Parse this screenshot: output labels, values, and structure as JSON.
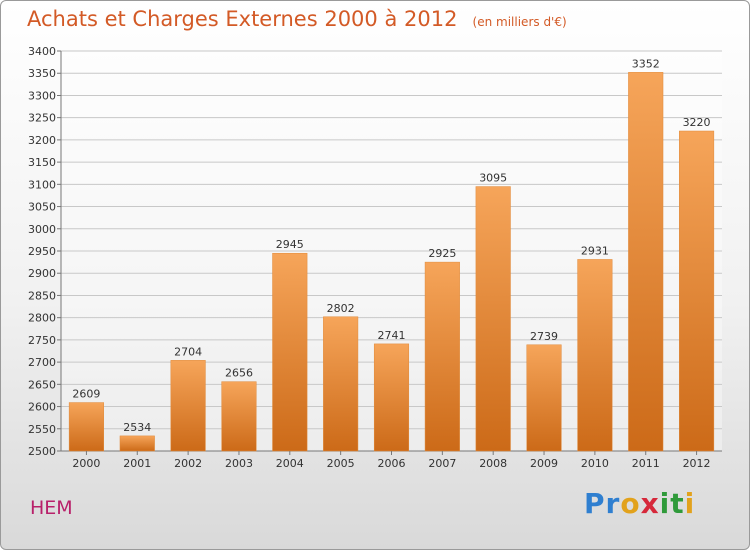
{
  "title": "Achats et Charges Externes 2000 à 2012",
  "unit": "(en milliers d'€)",
  "place": "HEM",
  "brand": {
    "letters": [
      {
        "ch": "P",
        "color": "#2f7fd0"
      },
      {
        "ch": "r",
        "color": "#2f7fd0"
      },
      {
        "ch": "o",
        "color": "#e2a21c"
      },
      {
        "ch": "x",
        "color": "#d6283a"
      },
      {
        "ch": "i",
        "color": "#2f9a3a"
      },
      {
        "ch": "t",
        "color": "#2f9a3a"
      },
      {
        "ch": "i",
        "color": "#e2a21c"
      }
    ]
  },
  "colors": {
    "title": "#d35a26",
    "bar_top": "#f6a55a",
    "bar_bottom": "#cc6a18",
    "grid": "#c8c8c8",
    "place": "#b8206a"
  },
  "chart_data": {
    "type": "bar",
    "categories": [
      "2000",
      "2001",
      "2002",
      "2003",
      "2004",
      "2005",
      "2006",
      "2007",
      "2008",
      "2009",
      "2010",
      "2011",
      "2012"
    ],
    "values": [
      2609,
      2534,
      2704,
      2656,
      2945,
      2802,
      2741,
      2925,
      3095,
      2739,
      2931,
      3352,
      3220
    ],
    "ylim": [
      2500,
      3400
    ],
    "yticks": [
      2500,
      2550,
      2600,
      2650,
      2700,
      2750,
      2800,
      2850,
      2900,
      2950,
      3000,
      3050,
      3100,
      3150,
      3200,
      3250,
      3300,
      3350,
      3400
    ],
    "grid": true,
    "data_labels": true
  }
}
